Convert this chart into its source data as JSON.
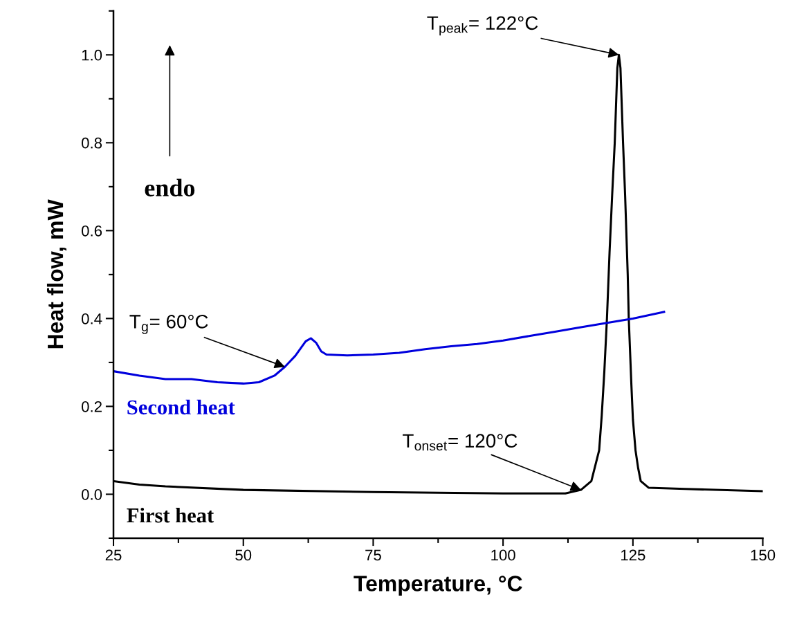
{
  "chart_data": {
    "type": "line",
    "xlabel": "Temperature, °C",
    "ylabel": "Heat flow, mW",
    "xlim": [
      25,
      150
    ],
    "xticks": [
      25,
      50,
      75,
      100,
      125,
      150
    ],
    "ylim": [
      -0.1,
      1.1
    ],
    "yticks": [
      {
        "value": 0,
        "label": "0.0"
      },
      0.2,
      0.4,
      0.6,
      0.8,
      {
        "value": 1,
        "label": "1.0"
      }
    ],
    "grid": false,
    "legend": false,
    "marker": "none",
    "line_style": "solid",
    "series": [
      {
        "name": "First heat",
        "color": "#000000",
        "x": [
          25,
          30,
          35,
          50,
          75,
          100,
          112,
          115,
          117,
          118.5,
          119,
          119.5,
          120,
          120.5,
          121,
          121.5,
          122,
          122.3,
          122.6,
          123.1,
          123.5,
          124,
          124.2,
          124.7,
          125,
          125.5,
          126,
          126.5,
          128,
          135,
          150
        ],
        "values": [
          0.03,
          0.022,
          0.018,
          0.01,
          0.005,
          0.002,
          0.002,
          0.01,
          0.03,
          0.1,
          0.18,
          0.28,
          0.4,
          0.55,
          0.68,
          0.8,
          0.97,
          1.0,
          0.97,
          0.8,
          0.68,
          0.5,
          0.4,
          0.25,
          0.17,
          0.1,
          0.06,
          0.03,
          0.015,
          0.012,
          0.007
        ]
      },
      {
        "name": "Second heat",
        "color": "#0000dd",
        "x": [
          25,
          30,
          35,
          40,
          45,
          50,
          53,
          56,
          58,
          60,
          62,
          63,
          64,
          65,
          66,
          70,
          75,
          80,
          85,
          90,
          95,
          100,
          105,
          110,
          115,
          120,
          125,
          131
        ],
        "values": [
          0.28,
          0.27,
          0.262,
          0.262,
          0.255,
          0.252,
          0.255,
          0.27,
          0.29,
          0.315,
          0.348,
          0.355,
          0.345,
          0.325,
          0.318,
          0.316,
          0.318,
          0.322,
          0.33,
          0.337,
          0.342,
          0.35,
          0.36,
          0.37,
          0.38,
          0.39,
          0.4,
          0.415
        ]
      }
    ],
    "annotations": [
      {
        "text": "T$_{peak}$= 122°C",
        "x": 122.3,
        "y": 1.0
      },
      {
        "text": "T$_{g}$= 60°C",
        "x": 58,
        "y": 0.29
      },
      {
        "text": "T$_{onset}$= 120°C",
        "x": 115,
        "y": 0.01
      },
      "endo"
    ]
  }
}
